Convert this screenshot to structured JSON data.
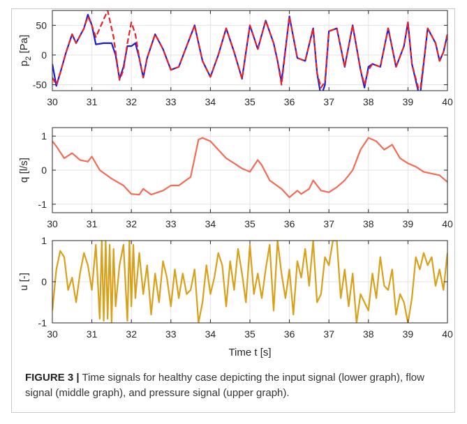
{
  "caption": {
    "label": "FIGURE 3 |",
    "text": " Time signals for healthy case depicting the input signal (lower graph), flow signal (middle graph), and pressure signal (upper graph)."
  },
  "chart_data": [
    {
      "type": "line",
      "ylabel": "p_2 [Pa]",
      "xlim": [
        30,
        40
      ],
      "ylim": [
        -60,
        75
      ],
      "xticks": [
        30,
        31,
        32,
        33,
        34,
        35,
        36,
        37,
        38,
        39,
        40
      ],
      "yticks": [
        -50,
        0,
        50
      ],
      "grid": true,
      "series": [
        {
          "color": "#1a1adb",
          "style": "solid",
          "x": [
            30.0,
            30.1,
            30.2,
            30.35,
            30.5,
            30.6,
            30.8,
            30.9,
            31.0,
            31.1,
            31.3,
            31.5,
            31.6,
            31.7,
            31.8,
            31.9,
            32.0,
            32.1,
            32.2,
            32.3,
            32.4,
            32.6,
            32.8,
            33.0,
            33.2,
            33.4,
            33.6,
            33.7,
            33.8,
            34.0,
            34.2,
            34.4,
            34.6,
            34.8,
            35.0,
            35.2,
            35.4,
            35.6,
            35.7,
            35.8,
            36.0,
            36.2,
            36.4,
            36.6,
            36.7,
            36.8,
            36.9,
            37.0,
            37.2,
            37.4,
            37.6,
            37.8,
            37.9,
            38.0,
            38.1,
            38.3,
            38.5,
            38.7,
            38.9,
            39.0,
            39.1,
            39.3,
            39.5,
            39.7,
            39.8,
            39.9,
            40.0
          ],
          "y": [
            -15,
            -52,
            -30,
            5,
            35,
            20,
            45,
            68,
            50,
            18,
            20,
            20,
            0,
            -40,
            -20,
            15,
            15,
            20,
            -5,
            -38,
            -5,
            35,
            10,
            -25,
            -20,
            15,
            50,
            20,
            -10,
            -37,
            0,
            45,
            5,
            -40,
            50,
            10,
            58,
            20,
            -10,
            -45,
            65,
            -5,
            -10,
            45,
            -30,
            -70,
            -50,
            40,
            45,
            -20,
            50,
            -25,
            -55,
            -20,
            -15,
            -20,
            45,
            -20,
            15,
            55,
            -15,
            -72,
            45,
            20,
            -10,
            5,
            35
          ]
        },
        {
          "color": "#e8202a",
          "style": "dashed",
          "x": [
            30.0,
            30.1,
            30.2,
            30.35,
            30.5,
            30.6,
            30.8,
            30.9,
            31.0,
            31.1,
            31.2,
            31.4,
            31.55,
            31.7,
            31.8,
            31.9,
            32.0,
            32.1,
            32.2,
            32.3,
            32.4,
            32.6,
            32.8,
            33.0,
            33.2,
            33.4,
            33.6,
            33.7,
            33.8,
            34.0,
            34.2,
            34.4,
            34.6,
            34.8,
            35.0,
            35.2,
            35.4,
            35.6,
            35.7,
            35.8,
            36.0,
            36.2,
            36.4,
            36.6,
            36.7,
            36.8,
            36.9,
            37.0,
            37.2,
            37.4,
            37.6,
            37.8,
            37.9,
            38.0,
            38.1,
            38.3,
            38.5,
            38.7,
            38.9,
            39.0,
            39.1,
            39.3,
            39.5,
            39.7,
            39.8,
            39.9,
            40.0
          ],
          "y": [
            -38,
            -50,
            -30,
            5,
            35,
            20,
            45,
            65,
            50,
            30,
            45,
            75,
            30,
            -42,
            -25,
            20,
            55,
            35,
            -5,
            -38,
            -5,
            35,
            10,
            -25,
            -20,
            15,
            50,
            20,
            -10,
            -37,
            0,
            45,
            5,
            -40,
            50,
            10,
            58,
            20,
            -10,
            -50,
            65,
            -5,
            -10,
            45,
            -30,
            -55,
            -45,
            40,
            45,
            -20,
            50,
            -25,
            -50,
            -25,
            -15,
            -20,
            45,
            -20,
            15,
            55,
            -15,
            -65,
            45,
            20,
            -10,
            5,
            35
          ]
        }
      ]
    },
    {
      "type": "line",
      "ylabel": "q [l/s]",
      "xlim": [
        30,
        40
      ],
      "ylim": [
        -1.25,
        1.25
      ],
      "xticks": [
        30,
        31,
        32,
        33,
        34,
        35,
        36,
        37,
        38,
        39,
        40
      ],
      "yticks": [
        -1,
        0,
        1
      ],
      "grid": true,
      "series": [
        {
          "color": "#f46a55",
          "style": "solid",
          "x": [
            30.0,
            30.1,
            30.3,
            30.5,
            30.7,
            30.9,
            31.0,
            31.2,
            31.5,
            31.8,
            32.0,
            32.2,
            32.3,
            32.5,
            32.8,
            33.0,
            33.2,
            33.5,
            33.7,
            33.8,
            34.0,
            34.2,
            34.4,
            34.6,
            34.8,
            35.0,
            35.2,
            35.3,
            35.5,
            35.8,
            36.0,
            36.2,
            36.3,
            36.5,
            36.6,
            36.8,
            37.0,
            37.2,
            37.4,
            37.6,
            37.8,
            38.0,
            38.2,
            38.4,
            38.6,
            38.8,
            39.0,
            39.2,
            39.4,
            39.6,
            39.8,
            40.0
          ],
          "y": [
            0.85,
            0.7,
            0.35,
            0.5,
            0.3,
            0.25,
            0.4,
            0.0,
            -0.25,
            -0.45,
            -0.7,
            -0.72,
            -0.55,
            -0.72,
            -0.6,
            -0.45,
            -0.45,
            -0.2,
            0.9,
            0.95,
            0.85,
            0.6,
            0.35,
            0.2,
            0.05,
            -0.05,
            0.3,
            0.15,
            -0.3,
            -0.55,
            -0.8,
            -0.6,
            -0.7,
            -0.55,
            -0.3,
            -0.6,
            -0.65,
            -0.5,
            -0.3,
            0.0,
            0.6,
            0.95,
            0.85,
            0.6,
            0.75,
            0.35,
            0.2,
            0.1,
            -0.05,
            -0.1,
            -0.15,
            -0.35
          ]
        }
      ]
    },
    {
      "type": "line",
      "ylabel": "u [-]",
      "xlabel": "Time t [s]",
      "xlim": [
        30,
        40
      ],
      "ylim": [
        -1,
        1
      ],
      "xticks": [
        30,
        31,
        32,
        33,
        34,
        35,
        36,
        37,
        38,
        39,
        40
      ],
      "yticks": [
        -1,
        0,
        1
      ],
      "grid": true,
      "series": [
        {
          "color": "#d9a019",
          "style": "solid",
          "x": [
            30.0,
            30.1,
            30.2,
            30.3,
            30.4,
            30.5,
            30.6,
            30.7,
            30.8,
            30.9,
            31.0,
            31.1,
            31.2,
            31.25,
            31.3,
            31.35,
            31.4,
            31.45,
            31.5,
            31.55,
            31.6,
            31.7,
            31.8,
            31.9,
            31.95,
            32.0,
            32.05,
            32.1,
            32.2,
            32.3,
            32.4,
            32.5,
            32.6,
            32.7,
            32.8,
            32.9,
            33.0,
            33.1,
            33.2,
            33.3,
            33.4,
            33.5,
            33.6,
            33.7,
            33.8,
            33.9,
            34.0,
            34.1,
            34.2,
            34.3,
            34.4,
            34.5,
            34.6,
            34.7,
            34.8,
            34.9,
            35.0,
            35.1,
            35.2,
            35.3,
            35.4,
            35.5,
            35.6,
            35.7,
            35.8,
            35.9,
            36.0,
            36.1,
            36.2,
            36.3,
            36.4,
            36.5,
            36.6,
            36.7,
            36.8,
            36.9,
            37.0,
            37.1,
            37.2,
            37.3,
            37.4,
            37.5,
            37.6,
            37.7,
            37.8,
            37.9,
            38.0,
            38.1,
            38.2,
            38.3,
            38.4,
            38.5,
            38.6,
            38.7,
            38.8,
            38.9,
            39.0,
            39.1,
            39.2,
            39.3,
            39.4,
            39.5,
            39.6,
            39.7,
            39.8,
            39.9,
            40.0
          ],
          "y": [
            -0.7,
            0.3,
            0.75,
            0.6,
            -0.2,
            0.1,
            -0.5,
            0.2,
            0.7,
            0.4,
            -0.2,
            0.9,
            -0.9,
            1.0,
            -0.95,
            1.0,
            -0.9,
            0.9,
            -1.0,
            0.8,
            -0.6,
            0.4,
            0.9,
            -0.95,
            1.0,
            -0.6,
            0.9,
            -0.4,
            0.7,
            -0.3,
            0.4,
            -0.8,
            0.2,
            -0.5,
            0.5,
            0.1,
            -0.6,
            0.3,
            -0.4,
            0.2,
            -0.3,
            -0.2,
            0.3,
            -1.0,
            -0.5,
            0.4,
            -0.3,
            0.1,
            0.7,
            0.4,
            -0.6,
            0.5,
            -0.2,
            0.8,
            0.2,
            -0.5,
            0.9,
            -0.3,
            0.2,
            -0.4,
            0.3,
            0.9,
            -0.7,
            1.0,
            0.2,
            -0.4,
            0.3,
            -0.8,
            0.5,
            0.1,
            0.8,
            -0.1,
            1.0,
            -0.5,
            -0.3,
            0.6,
            0.4,
            1.0,
            1.0,
            -0.4,
            0.3,
            -0.6,
            0.2,
            -1.0,
            -0.3,
            -0.5,
            -0.7,
            0.2,
            -0.4,
            0.6,
            -0.1,
            -0.2,
            0.3,
            -0.8,
            -0.3,
            -0.5,
            -1.0,
            -0.4,
            0.6,
            0.3,
            0.7,
            0.4,
            0.6,
            -0.1,
            0.3,
            -0.2,
            0.7
          ]
        }
      ]
    }
  ]
}
